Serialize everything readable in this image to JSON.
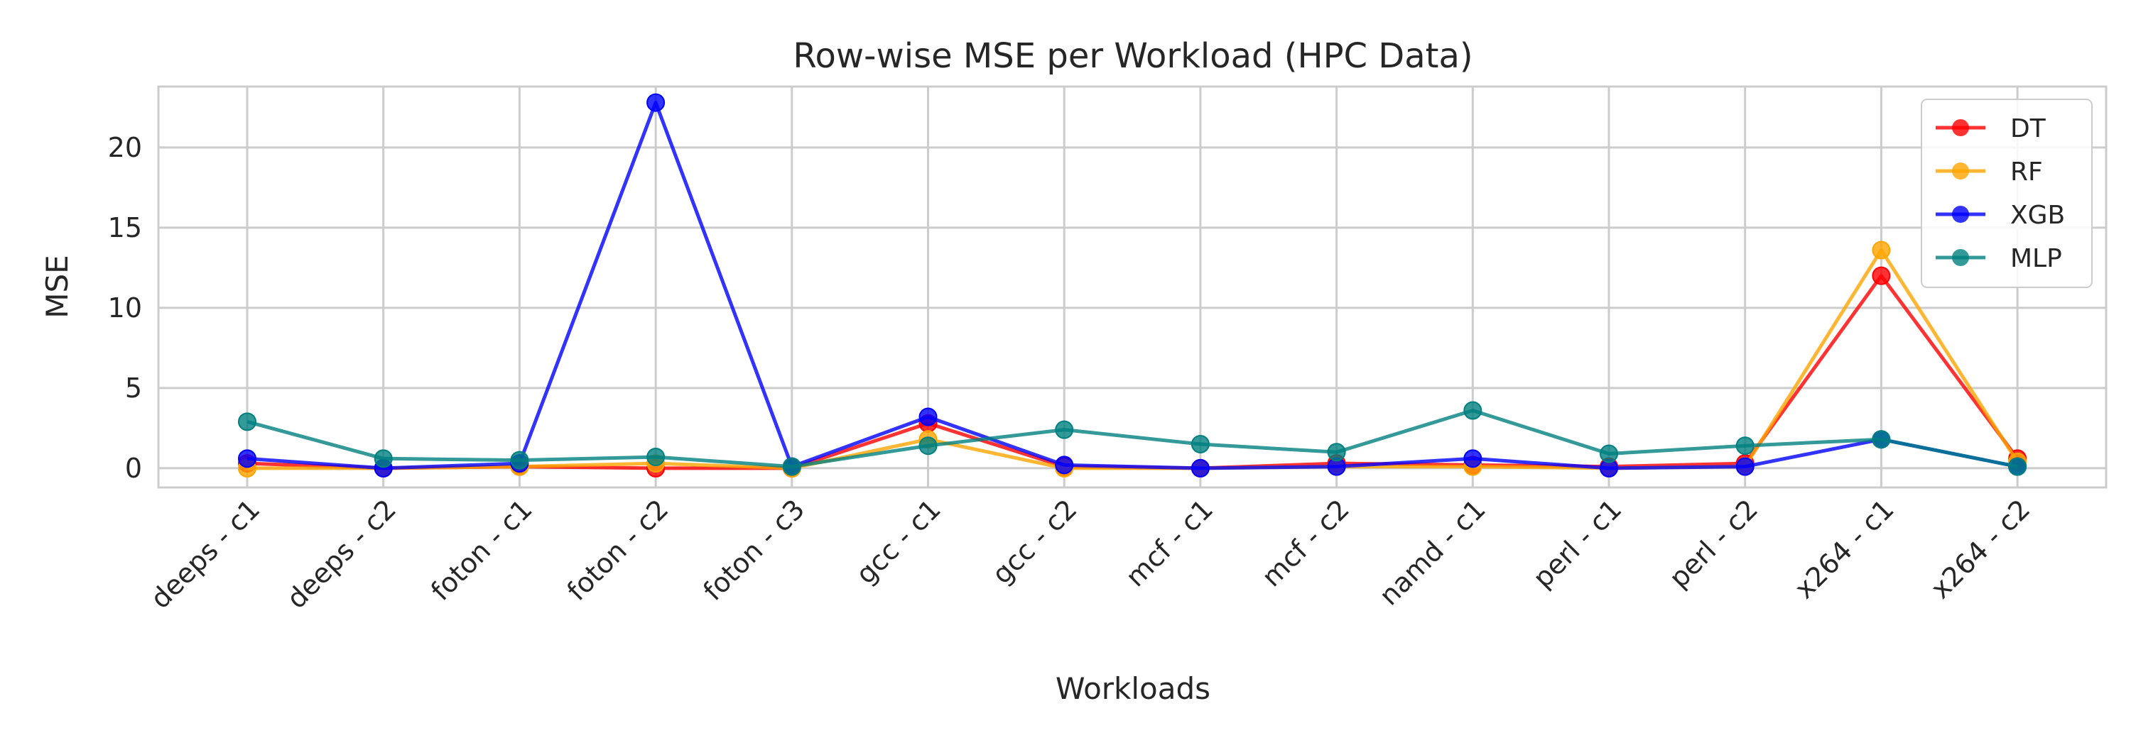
{
  "chart_data": {
    "type": "line",
    "title": "Row-wise MSE per Workload (HPC Data)",
    "xlabel": "Workloads",
    "ylabel": "MSE",
    "ylim": [
      -1.2,
      23.8
    ],
    "yticks": [
      0,
      5,
      10,
      15,
      20
    ],
    "grid": true,
    "legend_position": "top-right",
    "categories": [
      "deeps - c1",
      "deeps - c2",
      "foton - c1",
      "foton - c2",
      "foton - c3",
      "gcc - c1",
      "gcc - c2",
      "mcf - c1",
      "mcf - c2",
      "namd - c1",
      "perl - c1",
      "perl - c2",
      "x264 - c1",
      "x264 - c2"
    ],
    "series": [
      {
        "name": "DT",
        "color": "#ff0000",
        "values": [
          0.3,
          0.0,
          0.1,
          0.0,
          0.0,
          2.8,
          0.1,
          0.0,
          0.3,
          0.2,
          0.1,
          0.3,
          12.0,
          0.6
        ]
      },
      {
        "name": "RF",
        "color": "#ffa500",
        "values": [
          0.0,
          0.0,
          0.1,
          0.3,
          0.0,
          1.8,
          0.0,
          0.0,
          0.1,
          0.1,
          0.0,
          0.1,
          13.6,
          0.4
        ]
      },
      {
        "name": "XGB",
        "color": "#0000ff",
        "values": [
          0.6,
          0.0,
          0.3,
          22.8,
          0.1,
          3.2,
          0.2,
          0.0,
          0.1,
          0.6,
          0.0,
          0.1,
          1.8,
          0.1
        ]
      },
      {
        "name": "MLP",
        "color": "#008080",
        "values": [
          2.9,
          0.6,
          0.5,
          0.7,
          0.1,
          1.4,
          2.4,
          1.5,
          1.0,
          3.6,
          0.9,
          1.4,
          1.8,
          0.1
        ]
      }
    ]
  }
}
